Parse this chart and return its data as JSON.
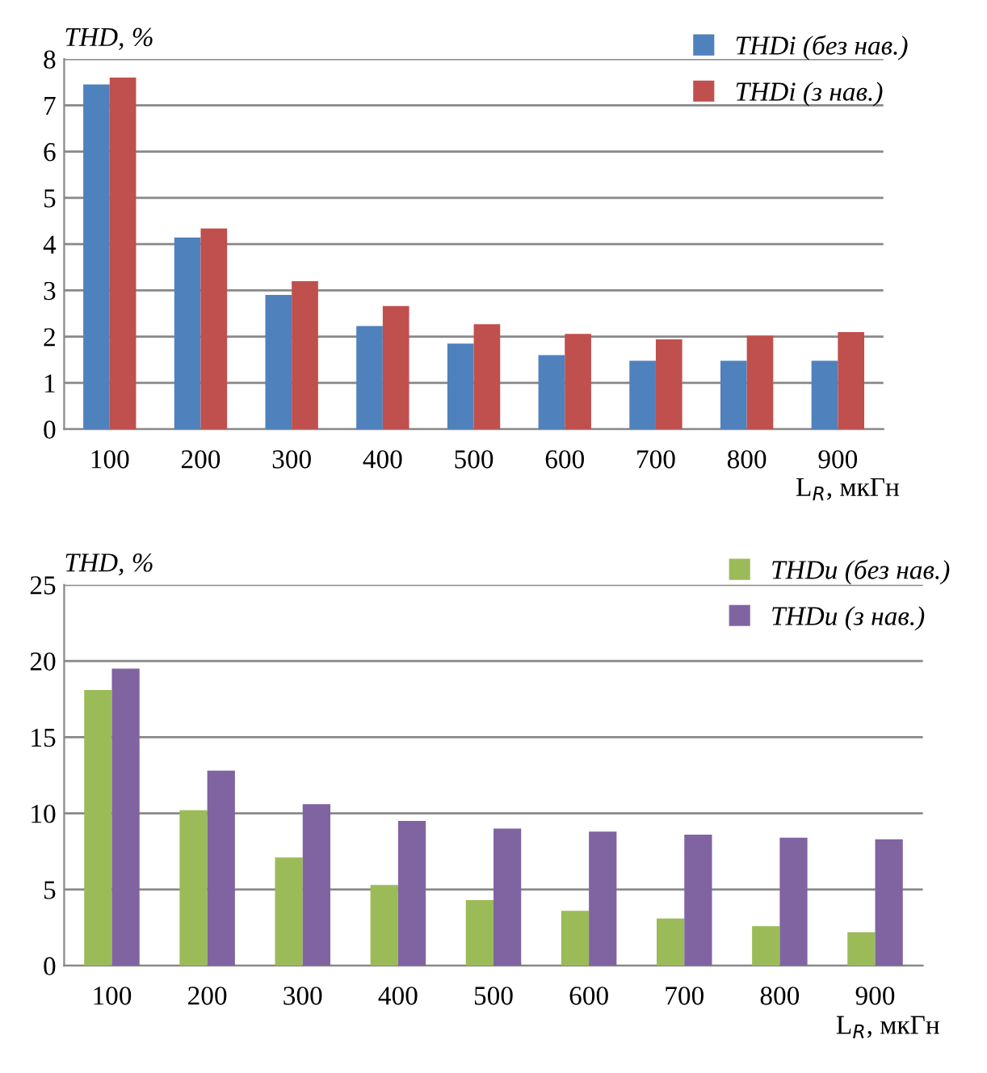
{
  "chart_data": [
    {
      "type": "bar",
      "ylabel": "THD, %",
      "xlabel": "L$_{R}$, мкГн",
      "categories": [
        "100",
        "200",
        "300",
        "400",
        "500",
        "600",
        "700",
        "800",
        "900"
      ],
      "series": [
        {
          "name": "THDi (без нав.)",
          "color": "#4f81bd",
          "values": [
            7.45,
            4.14,
            2.9,
            2.23,
            1.85,
            1.6,
            1.48,
            1.48,
            1.48
          ]
        },
        {
          "name": "THDi (з нав.)",
          "color": "#c0504d",
          "values": [
            7.6,
            4.34,
            3.2,
            2.66,
            2.27,
            2.06,
            1.94,
            2.02,
            2.1
          ]
        }
      ],
      "ylim": [
        0,
        8
      ],
      "yticks": [
        0,
        1,
        2,
        3,
        4,
        5,
        6,
        7,
        8
      ],
      "grid": "y",
      "legend": "top right"
    },
    {
      "type": "bar",
      "ylabel": "THD, %",
      "xlabel": "L$_{R}$, мкГн",
      "categories": [
        "100",
        "200",
        "300",
        "400",
        "500",
        "600",
        "700",
        "800",
        "900"
      ],
      "series": [
        {
          "name": "THDu (без нав.)",
          "color": "#9bbb59",
          "values": [
            18.1,
            10.2,
            7.1,
            5.3,
            4.3,
            3.6,
            3.1,
            2.6,
            2.2
          ]
        },
        {
          "name": "THDu (з нав.)",
          "color": "#8064a2",
          "values": [
            19.5,
            12.8,
            10.6,
            9.5,
            9.0,
            8.8,
            8.6,
            8.4,
            8.3
          ]
        }
      ],
      "ylim": [
        0,
        25
      ],
      "yticks": [
        0,
        5,
        10,
        15,
        20,
        25
      ],
      "grid": "y",
      "legend": "top right"
    }
  ]
}
